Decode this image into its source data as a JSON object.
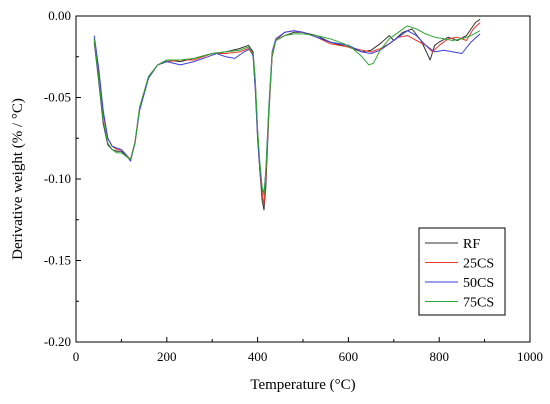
{
  "chart_data": {
    "type": "line",
    "xlabel": "Temperature (°C)",
    "ylabel": "Derivative weight (% / °C)",
    "xlim": [
      0,
      1000
    ],
    "ylim": [
      -0.2,
      0.0
    ],
    "x_ticks": [
      0,
      200,
      400,
      600,
      800,
      1000
    ],
    "x_tick_labels": [
      "0",
      "200",
      "400",
      "600",
      "800",
      "1000"
    ],
    "y_ticks": [
      0.0,
      -0.05,
      -0.1,
      -0.15,
      -0.2
    ],
    "y_tick_labels": [
      "0.00",
      "-0.05",
      "-0.10",
      "-0.15",
      "-0.20"
    ],
    "grid": false,
    "legend_position": "bottom-right",
    "series": [
      {
        "name": "RF",
        "color": "#333333",
        "points": [
          [
            40,
            -0.016
          ],
          [
            50,
            -0.04
          ],
          [
            60,
            -0.066
          ],
          [
            70,
            -0.079
          ],
          [
            80,
            -0.082
          ],
          [
            90,
            -0.083
          ],
          [
            100,
            -0.083
          ],
          [
            110,
            -0.086
          ],
          [
            120,
            -0.088
          ],
          [
            130,
            -0.078
          ],
          [
            140,
            -0.057
          ],
          [
            160,
            -0.038
          ],
          [
            180,
            -0.03
          ],
          [
            200,
            -0.027
          ],
          [
            230,
            -0.028
          ],
          [
            260,
            -0.026
          ],
          [
            300,
            -0.023
          ],
          [
            330,
            -0.022
          ],
          [
            360,
            -0.02
          ],
          [
            380,
            -0.018
          ],
          [
            390,
            -0.022
          ],
          [
            395,
            -0.04
          ],
          [
            400,
            -0.07
          ],
          [
            405,
            -0.095
          ],
          [
            410,
            -0.113
          ],
          [
            414,
            -0.119
          ],
          [
            418,
            -0.105
          ],
          [
            425,
            -0.06
          ],
          [
            432,
            -0.025
          ],
          [
            440,
            -0.015
          ],
          [
            460,
            -0.012
          ],
          [
            480,
            -0.01
          ],
          [
            500,
            -0.01
          ],
          [
            530,
            -0.012
          ],
          [
            560,
            -0.016
          ],
          [
            600,
            -0.019
          ],
          [
            630,
            -0.022
          ],
          [
            650,
            -0.021
          ],
          [
            670,
            -0.017
          ],
          [
            690,
            -0.012
          ],
          [
            700,
            -0.015
          ],
          [
            720,
            -0.01
          ],
          [
            740,
            -0.008
          ],
          [
            760,
            -0.015
          ],
          [
            775,
            -0.024
          ],
          [
            780,
            -0.027
          ],
          [
            790,
            -0.018
          ],
          [
            800,
            -0.016
          ],
          [
            820,
            -0.013
          ],
          [
            840,
            -0.015
          ],
          [
            860,
            -0.012
          ],
          [
            880,
            -0.004
          ],
          [
            890,
            -0.002
          ]
        ]
      },
      {
        "name": "25CS",
        "color": "#e8392e",
        "points": [
          [
            40,
            -0.014
          ],
          [
            50,
            -0.035
          ],
          [
            60,
            -0.06
          ],
          [
            70,
            -0.075
          ],
          [
            80,
            -0.08
          ],
          [
            90,
            -0.082
          ],
          [
            100,
            -0.082
          ],
          [
            110,
            -0.085
          ],
          [
            120,
            -0.088
          ],
          [
            130,
            -0.077
          ],
          [
            140,
            -0.056
          ],
          [
            160,
            -0.037
          ],
          [
            180,
            -0.03
          ],
          [
            200,
            -0.028
          ],
          [
            230,
            -0.027
          ],
          [
            260,
            -0.027
          ],
          [
            300,
            -0.023
          ],
          [
            330,
            -0.023
          ],
          [
            360,
            -0.022
          ],
          [
            380,
            -0.02
          ],
          [
            390,
            -0.024
          ],
          [
            395,
            -0.045
          ],
          [
            400,
            -0.075
          ],
          [
            405,
            -0.095
          ],
          [
            410,
            -0.108
          ],
          [
            414,
            -0.116
          ],
          [
            418,
            -0.1
          ],
          [
            425,
            -0.058
          ],
          [
            432,
            -0.024
          ],
          [
            440,
            -0.015
          ],
          [
            460,
            -0.01
          ],
          [
            480,
            -0.009
          ],
          [
            500,
            -0.01
          ],
          [
            530,
            -0.013
          ],
          [
            560,
            -0.017
          ],
          [
            600,
            -0.019
          ],
          [
            630,
            -0.021
          ],
          [
            650,
            -0.022
          ],
          [
            670,
            -0.02
          ],
          [
            690,
            -0.017
          ],
          [
            710,
            -0.013
          ],
          [
            730,
            -0.012
          ],
          [
            750,
            -0.015
          ],
          [
            770,
            -0.018
          ],
          [
            785,
            -0.022
          ],
          [
            800,
            -0.018
          ],
          [
            820,
            -0.014
          ],
          [
            840,
            -0.013
          ],
          [
            860,
            -0.015
          ],
          [
            875,
            -0.008
          ],
          [
            890,
            -0.004
          ]
        ]
      },
      {
        "name": "50CS",
        "color": "#3a3fd8",
        "points": [
          [
            40,
            -0.012
          ],
          [
            50,
            -0.032
          ],
          [
            60,
            -0.058
          ],
          [
            70,
            -0.075
          ],
          [
            80,
            -0.08
          ],
          [
            90,
            -0.081
          ],
          [
            100,
            -0.082
          ],
          [
            110,
            -0.085
          ],
          [
            120,
            -0.089
          ],
          [
            130,
            -0.078
          ],
          [
            140,
            -0.058
          ],
          [
            160,
            -0.038
          ],
          [
            180,
            -0.03
          ],
          [
            200,
            -0.028
          ],
          [
            230,
            -0.03
          ],
          [
            260,
            -0.028
          ],
          [
            290,
            -0.025
          ],
          [
            310,
            -0.023
          ],
          [
            330,
            -0.025
          ],
          [
            350,
            -0.026
          ],
          [
            370,
            -0.022
          ],
          [
            385,
            -0.02
          ],
          [
            390,
            -0.025
          ],
          [
            395,
            -0.045
          ],
          [
            400,
            -0.075
          ],
          [
            405,
            -0.095
          ],
          [
            410,
            -0.105
          ],
          [
            414,
            -0.109
          ],
          [
            418,
            -0.095
          ],
          [
            425,
            -0.055
          ],
          [
            432,
            -0.022
          ],
          [
            440,
            -0.014
          ],
          [
            460,
            -0.01
          ],
          [
            480,
            -0.009
          ],
          [
            500,
            -0.01
          ],
          [
            530,
            -0.013
          ],
          [
            560,
            -0.016
          ],
          [
            600,
            -0.018
          ],
          [
            630,
            -0.022
          ],
          [
            650,
            -0.023
          ],
          [
            670,
            -0.021
          ],
          [
            690,
            -0.017
          ],
          [
            710,
            -0.013
          ],
          [
            730,
            -0.009
          ],
          [
            750,
            -0.012
          ],
          [
            770,
            -0.018
          ],
          [
            790,
            -0.022
          ],
          [
            810,
            -0.021
          ],
          [
            830,
            -0.022
          ],
          [
            850,
            -0.023
          ],
          [
            870,
            -0.016
          ],
          [
            890,
            -0.011
          ]
        ]
      },
      {
        "name": "75CS",
        "color": "#2ea836",
        "points": [
          [
            40,
            -0.014
          ],
          [
            50,
            -0.038
          ],
          [
            60,
            -0.064
          ],
          [
            70,
            -0.078
          ],
          [
            80,
            -0.082
          ],
          [
            90,
            -0.084
          ],
          [
            100,
            -0.084
          ],
          [
            110,
            -0.086
          ],
          [
            120,
            -0.088
          ],
          [
            130,
            -0.078
          ],
          [
            140,
            -0.056
          ],
          [
            160,
            -0.037
          ],
          [
            180,
            -0.03
          ],
          [
            200,
            -0.027
          ],
          [
            230,
            -0.027
          ],
          [
            260,
            -0.026
          ],
          [
            300,
            -0.023
          ],
          [
            330,
            -0.022
          ],
          [
            360,
            -0.021
          ],
          [
            380,
            -0.019
          ],
          [
            390,
            -0.023
          ],
          [
            395,
            -0.04
          ],
          [
            400,
            -0.07
          ],
          [
            405,
            -0.09
          ],
          [
            410,
            -0.105
          ],
          [
            414,
            -0.11
          ],
          [
            418,
            -0.096
          ],
          [
            425,
            -0.056
          ],
          [
            432,
            -0.023
          ],
          [
            440,
            -0.015
          ],
          [
            460,
            -0.012
          ],
          [
            480,
            -0.011
          ],
          [
            500,
            -0.011
          ],
          [
            530,
            -0.012
          ],
          [
            560,
            -0.014
          ],
          [
            590,
            -0.017
          ],
          [
            610,
            -0.02
          ],
          [
            630,
            -0.025
          ],
          [
            645,
            -0.03
          ],
          [
            655,
            -0.029
          ],
          [
            670,
            -0.021
          ],
          [
            690,
            -0.014
          ],
          [
            710,
            -0.01
          ],
          [
            730,
            -0.006
          ],
          [
            750,
            -0.008
          ],
          [
            770,
            -0.011
          ],
          [
            790,
            -0.013
          ],
          [
            810,
            -0.014
          ],
          [
            830,
            -0.015
          ],
          [
            850,
            -0.014
          ],
          [
            870,
            -0.012
          ],
          [
            890,
            -0.009
          ]
        ]
      }
    ]
  }
}
